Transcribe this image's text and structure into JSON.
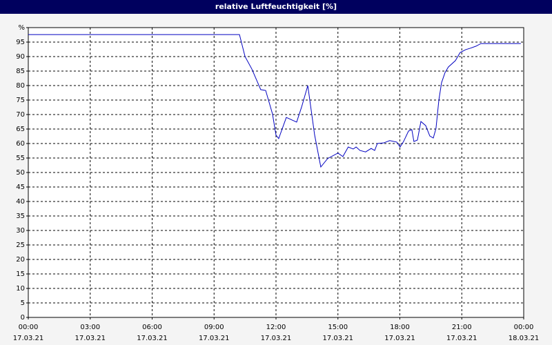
{
  "chart_data": {
    "type": "line",
    "title": "relative Luftfeuchtigkeit [%]",
    "x": [
      0,
      10.23,
      10.5,
      10.83,
      11.26,
      11.5,
      11.83,
      12.0,
      12.13,
      12.5,
      13.0,
      13.24,
      13.54,
      13.87,
      14.17,
      14.5,
      15.0,
      15.24,
      15.5,
      15.74,
      15.88,
      16.07,
      16.34,
      16.61,
      16.78,
      16.91,
      17.21,
      17.51,
      17.85,
      18.01,
      18.18,
      18.42,
      18.58,
      18.68,
      18.85,
      19.02,
      19.25,
      19.45,
      19.62,
      19.75,
      19.89,
      20.02,
      20.19,
      20.35,
      20.69,
      20.92,
      21.19,
      21.42,
      21.69,
      21.93,
      23.86
    ],
    "series": [
      {
        "name": "relative Luftfeuchtigkeit",
        "color": "#0000c0",
        "values": [
          97.6,
          97.6,
          90,
          85.7,
          78.6,
          78.3,
          70.2,
          62.9,
          61.7,
          69,
          67.4,
          72.6,
          80,
          63,
          51.9,
          54.8,
          56.7,
          55.5,
          58.8,
          58.1,
          58.8,
          57.6,
          57.1,
          58.3,
          57.6,
          60,
          60.2,
          61,
          60.5,
          58.8,
          60.7,
          64.3,
          64.8,
          60.7,
          61.2,
          67.6,
          66.2,
          62.6,
          61.9,
          65.2,
          75,
          81,
          84.5,
          86.4,
          88.6,
          91.4,
          92.4,
          92.9,
          93.6,
          94.5,
          94.5
        ]
      }
    ],
    "xlim": [
      0,
      24
    ],
    "xticks": [
      {
        "value": 0,
        "label": "00:00",
        "date": "17.03.21"
      },
      {
        "value": 3,
        "label": "03:00",
        "date": "17.03.21"
      },
      {
        "value": 6,
        "label": "06:00",
        "date": "17.03.21"
      },
      {
        "value": 9,
        "label": "09:00",
        "date": "17.03.21"
      },
      {
        "value": 12,
        "label": "12:00",
        "date": "17.03.21"
      },
      {
        "value": 15,
        "label": "15:00",
        "date": "17.03.21"
      },
      {
        "value": 18,
        "label": "18:00",
        "date": "17.03.21"
      },
      {
        "value": 21,
        "label": "21:00",
        "date": "17.03.21"
      },
      {
        "value": 24,
        "label": "00:00",
        "date": "18.03.21"
      }
    ],
    "ylim": [
      0,
      100
    ],
    "yticks": [
      0,
      5,
      10,
      15,
      20,
      25,
      30,
      35,
      40,
      45,
      50,
      55,
      60,
      65,
      70,
      75,
      80,
      85,
      90,
      95,
      {
        "value": 100,
        "label": "%"
      }
    ],
    "grid": true
  }
}
